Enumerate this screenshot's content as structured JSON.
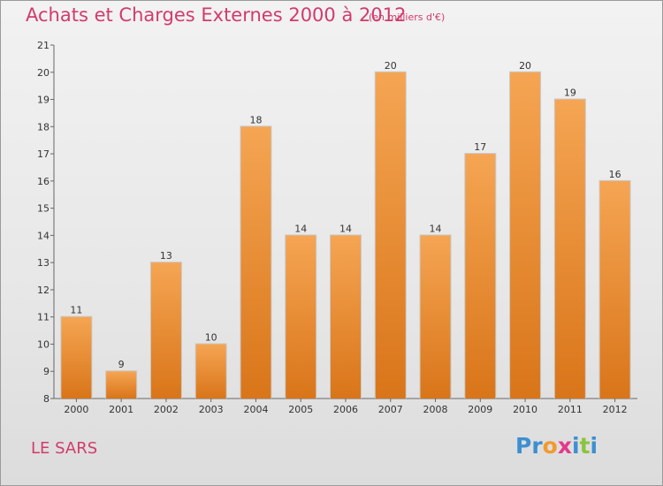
{
  "chart_data": {
    "type": "bar",
    "title": "Achats et Charges Externes 2000 à 2012",
    "subtitle": "(en milliers d'€)",
    "categories": [
      "2000",
      "2001",
      "2002",
      "2003",
      "2004",
      "2005",
      "2006",
      "2007",
      "2008",
      "2009",
      "2010",
      "2011",
      "2012"
    ],
    "values": [
      11,
      9,
      13,
      10,
      18,
      14,
      14,
      20,
      14,
      17,
      20,
      19,
      16
    ],
    "ylim": [
      8,
      21
    ],
    "yticks": [
      8,
      9,
      10,
      11,
      12,
      13,
      14,
      15,
      16,
      17,
      18,
      19,
      20,
      21
    ],
    "grid": false,
    "bar_color_top": "#f5a553",
    "bar_color_bottom": "#d97519",
    "bar_edge_color": "#c9c9c9"
  },
  "footer": {
    "commune": "LE SARS"
  },
  "logo": {
    "text": "Proxiti",
    "letters": [
      {
        "ch": "P",
        "color": "#3d8fd1"
      },
      {
        "ch": "r",
        "color": "#3d8fd1"
      },
      {
        "ch": "o",
        "color": "#f29a2e"
      },
      {
        "ch": "x",
        "color": "#e23a8c"
      },
      {
        "ch": "i",
        "color": "#3d8fd1"
      },
      {
        "ch": "t",
        "color": "#8ac43f"
      },
      {
        "ch": "i",
        "color": "#3d8fd1"
      }
    ]
  },
  "colors": {
    "title": "#d23b6a",
    "axis_text": "#333333"
  }
}
